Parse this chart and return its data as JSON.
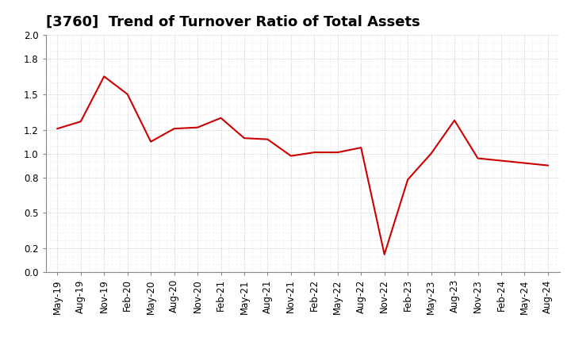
{
  "title": "[3760]  Trend of Turnover Ratio of Total Assets",
  "x_labels": [
    "May-19",
    "Aug-19",
    "Nov-19",
    "Feb-20",
    "May-20",
    "Aug-20",
    "Nov-20",
    "Feb-21",
    "May-21",
    "Aug-21",
    "Nov-21",
    "Feb-22",
    "May-22",
    "Aug-22",
    "Nov-22",
    "Feb-23",
    "May-23",
    "Aug-23",
    "Nov-23",
    "Feb-24",
    "May-24",
    "Aug-24"
  ],
  "y_values": [
    1.21,
    1.27,
    1.65,
    1.5,
    1.1,
    1.21,
    1.22,
    1.3,
    1.13,
    1.12,
    0.98,
    1.01,
    1.01,
    1.05,
    0.15,
    0.78,
    1.0,
    1.28,
    0.96,
    0.94,
    0.92,
    0.9
  ],
  "line_color": "#cc0000",
  "background_color": "#ffffff",
  "plot_bg_color": "#ffffff",
  "ylim": [
    0.0,
    2.0
  ],
  "yticks": [
    0.0,
    0.2,
    0.5,
    0.8,
    1.0,
    1.2,
    1.5,
    1.8,
    2.0
  ],
  "grid_color": "#bbbbbb",
  "title_fontsize": 13,
  "tick_fontsize": 8.5
}
